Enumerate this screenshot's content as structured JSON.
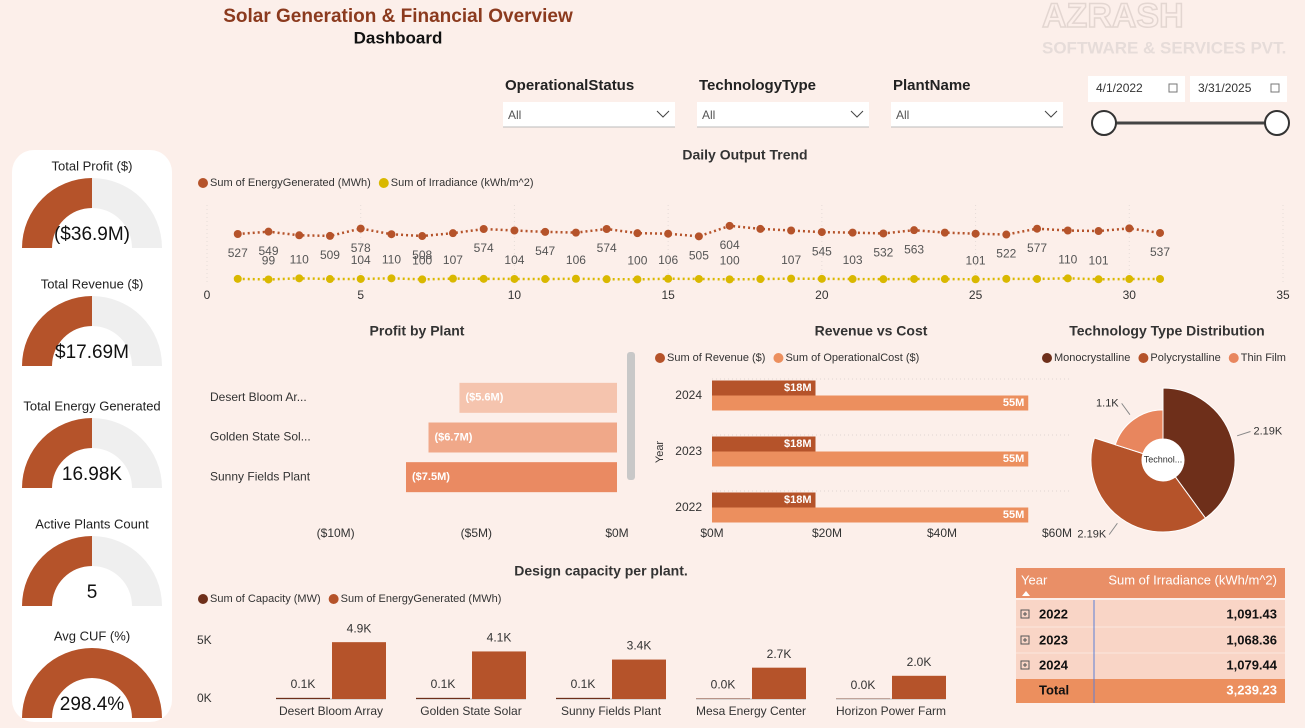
{
  "header": {
    "title": "Solar Generation & Financial Overview",
    "subtitle": "Dashboard",
    "logo_line1": "AZRASH",
    "logo_line2": "SOFTWARE & SERVICES PVT."
  },
  "filters": [
    {
      "label": "OperationalStatus",
      "value": "All"
    },
    {
      "label": "TechnologyType",
      "value": "All"
    },
    {
      "label": "PlantName",
      "value": "All"
    }
  ],
  "date_range": {
    "start": "4/1/2022",
    "end": "3/31/2025"
  },
  "kpis": [
    {
      "title": "Total Profit ($)",
      "value": "($36.9M)"
    },
    {
      "title": "Total Revenue ($)",
      "value": "$17.69M"
    },
    {
      "title": "Total Energy Generated",
      "value": "16.98K"
    },
    {
      "title": "Active Plants Count",
      "value": "5"
    },
    {
      "title": "Avg CUF (%)",
      "value": "298.4%"
    }
  ],
  "chart_data": [
    {
      "type": "line",
      "title": "Daily Output Trend",
      "x": [
        1,
        2,
        3,
        4,
        5,
        6,
        7,
        8,
        9,
        10,
        11,
        12,
        13,
        14,
        15,
        16,
        17,
        18,
        19,
        20,
        21,
        22,
        23,
        24,
        25,
        26,
        27,
        28,
        29,
        30,
        31
      ],
      "xlim": [
        0,
        35
      ],
      "xticks": [
        0,
        5,
        10,
        15,
        20,
        25,
        30,
        35
      ],
      "ylim": [
        0,
        800
      ],
      "grid": true,
      "series": [
        {
          "name": "Sum of EnergyGenerated (MWh)",
          "color": "#b5532a",
          "values": [
            527,
            549,
            515,
            509,
            578,
            525,
            508,
            535,
            574,
            560,
            547,
            540,
            574,
            535,
            530,
            505,
            604,
            575,
            560,
            545,
            540,
            532,
            563,
            540,
            530,
            522,
            577,
            560,
            555,
            580,
            537
          ],
          "value_labels": [
            "527",
            "549",
            null,
            "509",
            "578",
            null,
            "508",
            null,
            "574",
            null,
            "547",
            null,
            "574",
            null,
            null,
            "505",
            "604",
            null,
            null,
            "545",
            null,
            "532",
            "563",
            null,
            null,
            "522",
            "577",
            null,
            null,
            null,
            "537"
          ]
        },
        {
          "name": "Sum of Irradiance (kWh/m^2)",
          "color": "#d9b800",
          "values": [
            105,
            99,
            110,
            103,
            104,
            110,
            100,
            107,
            105,
            104,
            103,
            106,
            102,
            100,
            106,
            104,
            100,
            103,
            107,
            105,
            103,
            102,
            104,
            103,
            101,
            105,
            104,
            110,
            101,
            103,
            104
          ],
          "value_labels": [
            null,
            "99",
            "110",
            null,
            "104",
            "110",
            "100",
            "107",
            null,
            "104",
            null,
            "106",
            null,
            "100",
            "106",
            null,
            "100",
            null,
            "107",
            null,
            "103",
            null,
            null,
            null,
            "101",
            null,
            null,
            "110",
            "101",
            null,
            null
          ]
        }
      ]
    },
    {
      "type": "bar",
      "orientation": "horizontal",
      "title": "Profit by Plant",
      "categories": [
        "Desert Bloom Ar...",
        "Golden State Sol...",
        "Sunny Fields Plant"
      ],
      "values": [
        -5600000,
        -6700000,
        -7500000
      ],
      "value_labels": [
        "($5.6M)",
        "($6.7M)",
        "($7.5M)"
      ],
      "colors": [
        "#f5c4ae",
        "#f0a889",
        "#ea8a62"
      ],
      "xlim": [
        -15000000,
        0
      ],
      "xticks": [
        {
          "value": -10000000,
          "label": "($10M)"
        },
        {
          "value": -5000000,
          "label": "($5M)"
        },
        {
          "value": 0,
          "label": "$0M"
        }
      ]
    },
    {
      "type": "bar",
      "orientation": "horizontal",
      "title": "Revenue vs Cost",
      "y_label": "Year",
      "categories": [
        "2024",
        "2023",
        "2022"
      ],
      "series": [
        {
          "name": "Sum of Revenue ($)",
          "color": "#b5532a",
          "values": [
            18000000,
            18000000,
            18000000
          ],
          "value_labels": [
            "$18M",
            "$18M",
            "$18M"
          ]
        },
        {
          "name": "Sum of OperationalCost ($)",
          "color": "#ec8f5e",
          "values": [
            55000000,
            55000000,
            55000000
          ],
          "value_labels": [
            "55M",
            "55M",
            "55M"
          ]
        }
      ],
      "xlim": [
        0,
        60000000
      ],
      "xticks": [
        {
          "value": 0,
          "label": "$0M"
        },
        {
          "value": 20000000,
          "label": "$20M"
        },
        {
          "value": 40000000,
          "label": "$40M"
        },
        {
          "value": 60000000,
          "label": "$60M"
        }
      ]
    },
    {
      "type": "pie",
      "title": "Technology Type Distribution",
      "center_label": "Technol...",
      "categories": [
        "Monocrystalline",
        "Polycrystalline",
        "Thin Film"
      ],
      "values": [
        2190,
        2190,
        1100
      ],
      "value_labels": [
        "2.19K",
        "2.19K",
        "1.1K"
      ],
      "colors": [
        "#6e2f1a",
        "#b5532a",
        "#e8865e"
      ]
    },
    {
      "type": "bar",
      "title": "Design capacity per plant.",
      "categories": [
        "Desert Bloom Array",
        "Golden State Solar",
        "Sunny Fields Plant",
        "Mesa Energy Center",
        "Horizon Power Farm"
      ],
      "series": [
        {
          "name": "Sum of Capacity (MW)",
          "color": "#6e2f1a",
          "values": [
            100,
            100,
            100,
            40,
            30
          ],
          "value_labels": [
            "0.1K",
            "0.1K",
            "0.1K",
            "0.0K",
            "0.0K"
          ]
        },
        {
          "name": "Sum of EnergyGenerated (MWh)",
          "color": "#b5532a",
          "values": [
            4900,
            4100,
            3400,
            2700,
            2000
          ],
          "value_labels": [
            "4.9K",
            "4.1K",
            "3.4K",
            "2.7K",
            "2.0K"
          ]
        }
      ],
      "ylim": [
        0,
        6000
      ],
      "yticks": [
        {
          "value": 0,
          "label": "0K"
        },
        {
          "value": 5000,
          "label": "5K"
        }
      ]
    }
  ],
  "table": {
    "columns": [
      "Year",
      "Sum of Irradiance (kWh/m^2)"
    ],
    "rows": [
      [
        "2022",
        "1,091.43"
      ],
      [
        "2023",
        "1,068.36"
      ],
      [
        "2024",
        "1,079.44"
      ]
    ],
    "total": [
      "Total",
      "3,239.23"
    ]
  }
}
